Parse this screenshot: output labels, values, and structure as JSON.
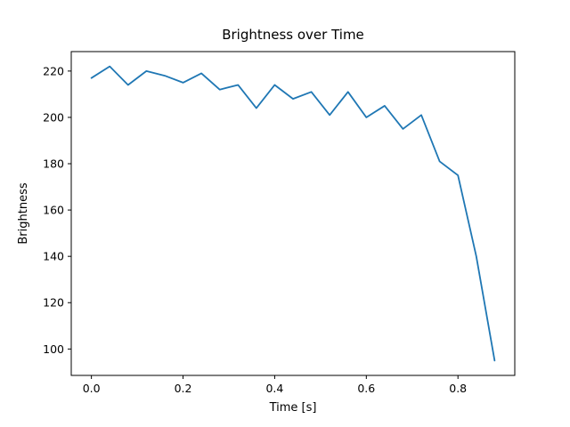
{
  "chart_data": {
    "type": "line",
    "title": "Brightness over Time",
    "xlabel": "Time [s]",
    "ylabel": "Brightness",
    "x": [
      0.0,
      0.04,
      0.08,
      0.12,
      0.16,
      0.2,
      0.24,
      0.28,
      0.32,
      0.36,
      0.4,
      0.44,
      0.48,
      0.52,
      0.56,
      0.6,
      0.64,
      0.68,
      0.72,
      0.76,
      0.8,
      0.84,
      0.88
    ],
    "y": [
      217,
      222,
      214,
      220,
      218,
      215,
      219,
      212,
      214,
      204,
      214,
      208,
      211,
      201,
      211,
      200,
      205,
      195,
      201,
      181,
      175,
      140,
      95
    ],
    "xlim": [
      -0.044,
      0.924
    ],
    "ylim": [
      88.6,
      228.4
    ],
    "xtick_values": [
      0.0,
      0.2,
      0.4,
      0.6,
      0.8
    ],
    "xtick_labels": [
      "0.0",
      "0.2",
      "0.4",
      "0.6",
      "0.8"
    ],
    "ytick_values": [
      100,
      120,
      140,
      160,
      180,
      200,
      220
    ],
    "ytick_labels": [
      "100",
      "120",
      "140",
      "160",
      "180",
      "200",
      "220"
    ],
    "line_color": "#1f77b4",
    "spine_color": "#000000",
    "background_color": "#ffffff",
    "grid": "off",
    "legend": "none"
  }
}
